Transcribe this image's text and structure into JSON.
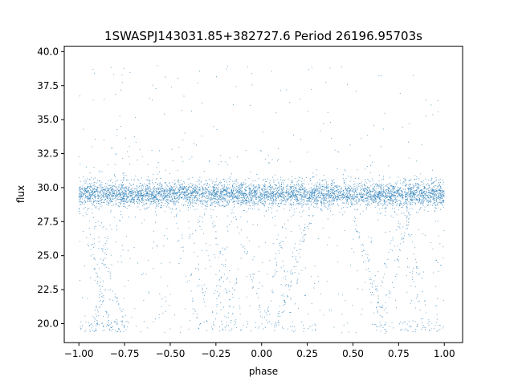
{
  "chart_data": {
    "type": "scatter",
    "title": "1SWASPJ143031.85+382727.6 Period 26196.95703s",
    "xlabel": "phase",
    "ylabel": "flux",
    "xlim": [
      -1.08,
      1.1
    ],
    "ylim": [
      18.6,
      40.4
    ],
    "xticks": [
      -1.0,
      -0.75,
      -0.5,
      -0.25,
      0.0,
      0.25,
      0.5,
      0.75,
      1.0
    ],
    "xtick_labels": [
      "−1.00",
      "−0.75",
      "−0.50",
      "−0.25",
      "0.00",
      "0.25",
      "0.50",
      "0.75",
      "1.00"
    ],
    "yticks": [
      20.0,
      22.5,
      25.0,
      27.5,
      30.0,
      32.5,
      35.0,
      37.5,
      40.0
    ],
    "ytick_labels": [
      "20.0",
      "22.5",
      "25.0",
      "27.5",
      "30.0",
      "32.5",
      "35.0",
      "37.5",
      "40.0"
    ],
    "grid": false,
    "point_color": "#1f77b4",
    "series": [
      {
        "x_range": [
          -1.0,
          1.0
        ],
        "main_band": {
          "center": 29.5,
          "sigma": 0.45
        },
        "upper_scatter_range": [
          30.5,
          39.0
        ],
        "lower_scatter_range": [
          19.3,
          28.5
        ],
        "dip_streak_regions": [
          [
            -1.0,
            -0.72
          ],
          [
            -0.35,
            0.3
          ],
          [
            0.6,
            1.0
          ]
        ],
        "floor": 19.4
      }
    ]
  }
}
